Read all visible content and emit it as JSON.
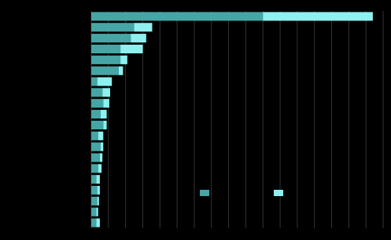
{
  "chart_data": {
    "type": "barh-stacked",
    "categories": [
      null,
      null,
      null,
      null,
      null,
      null,
      null,
      null,
      null,
      null,
      null,
      null,
      null,
      null,
      null,
      null,
      null,
      null,
      null,
      null
    ],
    "series": [
      {
        "color": "#46a6a6",
        "values": [
          10.0,
          2.5,
          2.3,
          1.7,
          1.7,
          1.6,
          0.35,
          0.65,
          0.7,
          0.55,
          0.7,
          0.4,
          0.55,
          0.5,
          0.4,
          0.3,
          0.35,
          0.35,
          0.3,
          0.3
        ]
      },
      {
        "color": "#8ef0ef",
        "values": [
          6.4,
          1.05,
          0.9,
          1.3,
          0.4,
          0.25,
          0.85,
          0.45,
          0.35,
          0.35,
          0.2,
          0.3,
          0.15,
          0.15,
          0.2,
          0.2,
          0.15,
          0.1,
          0.1,
          0.2
        ]
      }
    ],
    "xlim": [
      0,
      17
    ],
    "xticks": [
      0,
      1,
      2,
      3,
      4,
      5,
      6,
      7,
      8,
      9,
      10,
      11,
      12,
      13,
      14,
      15,
      16,
      17
    ],
    "grid": true,
    "legend": "lower right"
  }
}
